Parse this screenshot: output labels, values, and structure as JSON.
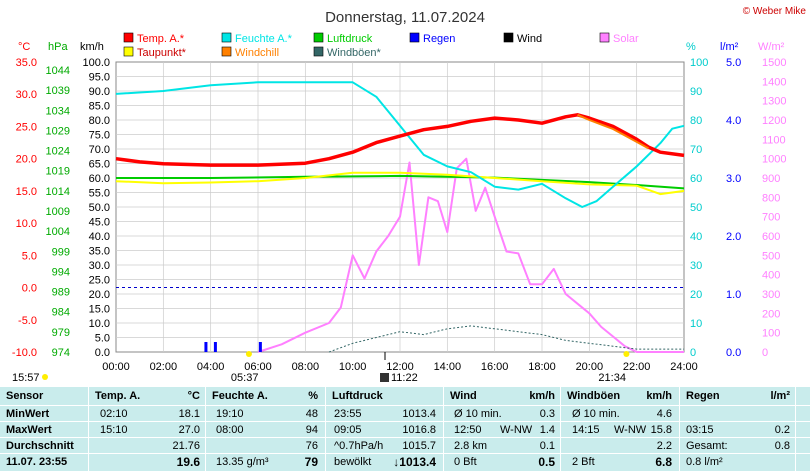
{
  "header": {
    "title": "Donnerstag, 11.07.2024",
    "copyright": "© Weber Mike"
  },
  "legend": [
    {
      "label": "Temp. A.*",
      "color": "#ff0000"
    },
    {
      "label": "Feuchte A.*",
      "color": "#00e5e5"
    },
    {
      "label": "Luftdruck",
      "color": "#00cc00"
    },
    {
      "label": "Regen",
      "color": "#0000ff"
    },
    {
      "label": "Wind",
      "color": "#000000"
    },
    {
      "label": "Solar",
      "color": "#ff80ff"
    },
    {
      "label": "Taupunkt*",
      "color": "#ffff00"
    },
    {
      "label": "Windchill",
      "color": "#ff8000"
    },
    {
      "label": "Windböen*",
      "color": "#336666"
    }
  ],
  "axis_units": {
    "temp": "°C",
    "pressure": "hPa",
    "wind": "km/h",
    "humidity": "%",
    "rain": "l/m²",
    "solar": "W/m²"
  },
  "axis_ticks": {
    "temp": [
      "35.0",
      "30.0",
      "25.0",
      "20.0",
      "15.0",
      "10.0",
      "5.0",
      "0.0",
      "-5.0",
      "-10.0"
    ],
    "pressure": [
      "1044",
      "1039",
      "1034",
      "1029",
      "1024",
      "1019",
      "1014",
      "1009",
      "1004",
      "999",
      "994",
      "989",
      "984",
      "979",
      "974"
    ],
    "wind": [
      "100.0",
      "95.0",
      "90.0",
      "85.0",
      "80.0",
      "75.0",
      "70.0",
      "65.0",
      "60.0",
      "55.0",
      "50.0",
      "45.0",
      "40.0",
      "35.0",
      "30.0",
      "25.0",
      "20.0",
      "15.0",
      "10.0",
      "5.0",
      "0.0"
    ],
    "humidity": [
      "100",
      "90",
      "80",
      "70",
      "60",
      "50",
      "40",
      "30",
      "20",
      "10",
      "0"
    ],
    "rain": [
      "5.0",
      "4.0",
      "3.0",
      "2.0",
      "1.0",
      "0.0"
    ],
    "solar": [
      "1500",
      "1400",
      "1300",
      "1200",
      "1100",
      "1000",
      "900",
      "800",
      "700",
      "600",
      "500",
      "400",
      "300",
      "200",
      "100",
      "0"
    ],
    "time": [
      "00:00",
      "02:00",
      "04:00",
      "06:00",
      "08:00",
      "10:00",
      "12:00",
      "14:00",
      "16:00",
      "18:00",
      "20:00",
      "22:00",
      "24:00"
    ]
  },
  "sun": {
    "sunrise": "05:37",
    "sunset": "21:34",
    "noon": "11:22",
    "last_update": "15:57"
  },
  "chart_data": {
    "type": "line",
    "x_unit": "hours",
    "series": [
      {
        "name": "Temp. A.*",
        "axis": "temp",
        "color": "#ff0000",
        "points": [
          [
            0,
            20.0
          ],
          [
            1,
            19.5
          ],
          [
            2,
            19.2
          ],
          [
            4,
            19.0
          ],
          [
            6,
            19.0
          ],
          [
            8,
            19.3
          ],
          [
            9,
            20.0
          ],
          [
            10,
            21.0
          ],
          [
            11,
            22.5
          ],
          [
            12,
            23.5
          ],
          [
            13,
            24.5
          ],
          [
            14,
            25.0
          ],
          [
            15,
            25.8
          ],
          [
            16,
            26.3
          ],
          [
            17,
            26.0
          ],
          [
            18,
            25.5
          ],
          [
            19,
            26.5
          ],
          [
            19.5,
            26.8
          ],
          [
            20,
            26.3
          ],
          [
            21,
            25.0
          ],
          [
            22,
            23.0
          ],
          [
            22.5,
            21.8
          ],
          [
            23,
            21.0
          ],
          [
            24,
            20.5
          ]
        ]
      },
      {
        "name": "Windchill",
        "axis": "temp",
        "color": "#ff8000",
        "points": [
          [
            19.5,
            26.8
          ],
          [
            20,
            26.0
          ],
          [
            21,
            24.6
          ],
          [
            22,
            22.6
          ],
          [
            22.5,
            21.6
          ]
        ]
      },
      {
        "name": "Taupunkt*",
        "axis": "temp",
        "color": "#ffff00",
        "points": [
          [
            0,
            16.5
          ],
          [
            2,
            16.2
          ],
          [
            4,
            16.3
          ],
          [
            6,
            16.5
          ],
          [
            8,
            17.0
          ],
          [
            10,
            17.8
          ],
          [
            12,
            17.8
          ],
          [
            14,
            17.5
          ],
          [
            16,
            17.0
          ],
          [
            18,
            16.5
          ],
          [
            20,
            16.0
          ],
          [
            22,
            15.8
          ],
          [
            23,
            14.5
          ],
          [
            24,
            15.0
          ]
        ]
      },
      {
        "name": "Feuchte A.*",
        "axis": "humidity",
        "color": "#00e5e5",
        "points": [
          [
            0,
            89
          ],
          [
            2,
            90
          ],
          [
            4,
            92
          ],
          [
            6,
            93
          ],
          [
            8,
            93
          ],
          [
            10,
            93
          ],
          [
            11,
            88
          ],
          [
            12,
            78
          ],
          [
            13,
            68
          ],
          [
            14,
            64
          ],
          [
            15,
            62
          ],
          [
            16,
            57
          ],
          [
            17,
            56
          ],
          [
            18,
            58
          ],
          [
            19,
            53
          ],
          [
            19.7,
            50
          ],
          [
            20.3,
            52
          ],
          [
            21,
            57
          ],
          [
            22,
            64
          ],
          [
            23,
            72
          ],
          [
            23.5,
            77
          ],
          [
            24,
            78
          ]
        ]
      },
      {
        "name": "Luftdruck",
        "axis": "pressure",
        "color": "#00cc00",
        "points": [
          [
            0,
            1016.0
          ],
          [
            4,
            1016.0
          ],
          [
            8,
            1016.3
          ],
          [
            12,
            1016.5
          ],
          [
            16,
            1016.1
          ],
          [
            20,
            1015.0
          ],
          [
            22,
            1014.3
          ],
          [
            24,
            1013.5
          ]
        ]
      },
      {
        "name": "Solar",
        "axis": "solar",
        "color": "#ff80ff",
        "points": [
          [
            6,
            0
          ],
          [
            7,
            40
          ],
          [
            8,
            100
          ],
          [
            9,
            150
          ],
          [
            9.5,
            230
          ],
          [
            10,
            500
          ],
          [
            10.5,
            380
          ],
          [
            11,
            520
          ],
          [
            11.5,
            600
          ],
          [
            12,
            700
          ],
          [
            12.4,
            980
          ],
          [
            12.8,
            450
          ],
          [
            13.2,
            800
          ],
          [
            13.6,
            780
          ],
          [
            14,
            620
          ],
          [
            14.4,
            950
          ],
          [
            14.8,
            1000
          ],
          [
            15.2,
            730
          ],
          [
            15.6,
            850
          ],
          [
            16,
            700
          ],
          [
            16.5,
            520
          ],
          [
            17,
            510
          ],
          [
            17.5,
            350
          ],
          [
            18,
            350
          ],
          [
            18.5,
            430
          ],
          [
            19,
            300
          ],
          [
            19.5,
            250
          ],
          [
            20,
            200
          ],
          [
            20.5,
            130
          ],
          [
            21,
            80
          ],
          [
            21.5,
            30
          ],
          [
            22,
            0
          ],
          [
            24,
            0
          ]
        ]
      },
      {
        "name": "Windböen*",
        "axis": "wind",
        "color": "#336666",
        "points": [
          [
            9,
            0
          ],
          [
            10,
            3
          ],
          [
            11,
            5
          ],
          [
            12,
            7
          ],
          [
            13,
            6
          ],
          [
            14,
            8
          ],
          [
            15,
            9
          ],
          [
            16,
            8
          ],
          [
            17,
            7
          ],
          [
            18,
            6
          ],
          [
            19,
            4
          ],
          [
            20,
            3
          ],
          [
            21,
            2
          ],
          [
            22,
            1
          ],
          [
            23,
            1
          ],
          [
            24,
            1
          ]
        ]
      },
      {
        "name": "Regen",
        "axis": "rain",
        "color": "#0000ff",
        "bars": [
          [
            3.8,
            0.1
          ],
          [
            4.2,
            0.1
          ],
          [
            6.1,
            0.1
          ]
        ]
      }
    ]
  },
  "table": {
    "headers": {
      "sensor": "Sensor",
      "temp": "Temp. A.",
      "temp_u": "°C",
      "hum": "Feuchte A.",
      "hum_u": "%",
      "press": "Luftdruck",
      "wind": "Wind",
      "wind_u": "km/h",
      "gust": "Windböen",
      "gust_u": "km/h",
      "rain": "Regen",
      "rain_u": "l/m²"
    },
    "rows": [
      {
        "label": "MinWert",
        "t_time": "02:10",
        "t_val": "18.1",
        "h_time": "19:10",
        "h_val": "48",
        "p_time": "23:55",
        "p_val": "1013.4",
        "w_l": "Ø 10 min.",
        "w_v": "0.3",
        "g_l": "Ø 10 min.",
        "g_v": "4.6",
        "r_l": "",
        "r_v": ""
      },
      {
        "label": "MaxWert",
        "t_time": "15:10",
        "t_val": "27.0",
        "h_time": "08:00",
        "h_val": "94",
        "p_time": "09:05",
        "p_val": "1016.8",
        "w_l": "12:50",
        "w_dir": "W-NW",
        "w_v": "1.4",
        "g_l": "14:15",
        "g_dir": "W-NW",
        "g_v": "15.8",
        "r_l": "03:15",
        "r_v": "0.2"
      },
      {
        "label": "Durchschnitt",
        "t_time": "",
        "t_val": "21.76",
        "h_time": "",
        "h_val": "76",
        "p_time": "^0.7hPa/h",
        "p_val": "1015.7",
        "w_l": "2.8 km",
        "w_v": "0.1",
        "g_l": "",
        "g_v": "2.2",
        "r_l": "Gesamt:",
        "r_v": "0.8"
      },
      {
        "label": "11.07. 23:55",
        "t_time": "",
        "t_val": "19.6",
        "h_time": "13.35 g/m³",
        "h_val": "79",
        "p_time": "bewölkt",
        "p_val": "↓1013.4",
        "w_l": "0 Bft",
        "w_v": "0.5",
        "g_l": "2 Bft",
        "g_v": "6.8",
        "r_l": "0.8 l/m²",
        "r_v": ""
      }
    ]
  }
}
